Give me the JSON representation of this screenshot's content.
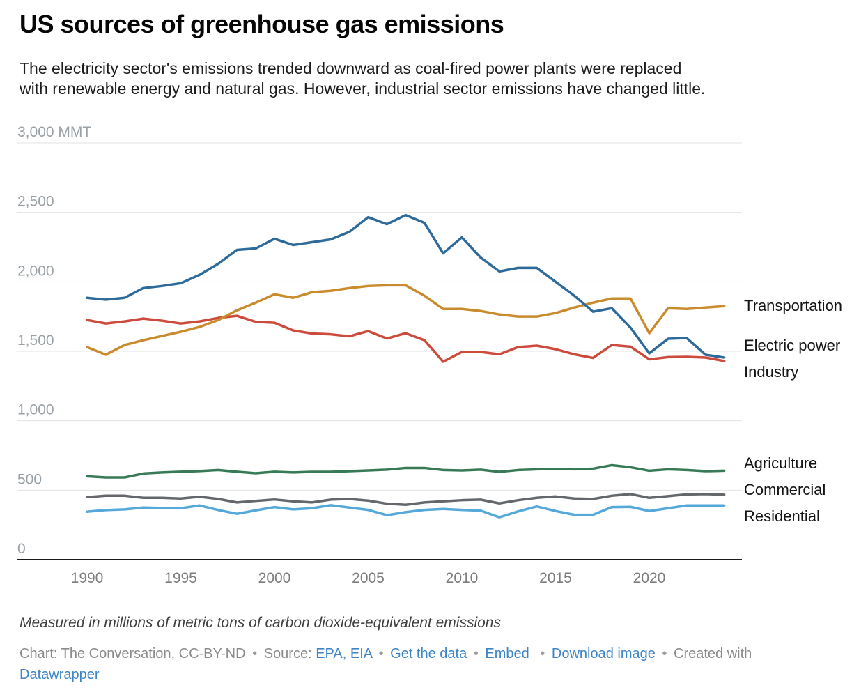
{
  "header": {
    "title": "US sources of greenhouse gas emissions",
    "subtitle_line1": "The electricity sector's emissions trended downward as coal-fired power plants were replaced",
    "subtitle_line2": "with renewable energy and natural gas. However, industrial sector emissions have changed little."
  },
  "chart_data": {
    "type": "line",
    "title": "US sources of greenhouse gas emissions",
    "xlabel": "",
    "ylabel": "MMT (millions of metric tons of CO2-equivalent)",
    "unit_suffix": "MMT",
    "ylim": [
      0,
      3000
    ],
    "grid": "horizontal",
    "legend_position": "right-edge-labels",
    "x": [
      1990,
      1991,
      1992,
      1993,
      1994,
      1995,
      1996,
      1997,
      1998,
      1999,
      2000,
      2001,
      2002,
      2003,
      2004,
      2005,
      2006,
      2007,
      2008,
      2009,
      2010,
      2011,
      2012,
      2013,
      2014,
      2015,
      2016,
      2017,
      2018,
      2019,
      2020,
      2021,
      2022,
      2023,
      2024
    ],
    "x_ticks": [
      1990,
      1995,
      2000,
      2005,
      2010,
      2015,
      2020
    ],
    "y_ticks": [
      0,
      500,
      1000,
      1500,
      2000,
      2500,
      3000
    ],
    "series": [
      {
        "name": "Transportation",
        "color": "#c98b2d",
        "values": [
          1530,
          1475,
          1545,
          1580,
          1610,
          1640,
          1675,
          1725,
          1795,
          1850,
          1910,
          1885,
          1925,
          1935,
          1955,
          1970,
          1975,
          1975,
          1900,
          1805,
          1805,
          1790,
          1765,
          1750,
          1750,
          1775,
          1815,
          1850,
          1880,
          1880,
          1630,
          1810,
          1805,
          1815,
          1825
        ]
      },
      {
        "name": "Electric power",
        "color": "#2e6b9b",
        "values": [
          1885,
          1872,
          1885,
          1955,
          1970,
          1990,
          2050,
          2130,
          2230,
          2240,
          2310,
          2265,
          2285,
          2305,
          2360,
          2465,
          2415,
          2480,
          2425,
          2205,
          2320,
          2175,
          2075,
          2100,
          2100,
          2000,
          1900,
          1785,
          1810,
          1670,
          1485,
          1590,
          1595,
          1475,
          1455
        ]
      },
      {
        "name": "Industry",
        "color": "#cc4b3c",
        "values": [
          1725,
          1700,
          1715,
          1735,
          1720,
          1700,
          1715,
          1740,
          1755,
          1712,
          1705,
          1650,
          1628,
          1622,
          1608,
          1645,
          1592,
          1630,
          1580,
          1425,
          1495,
          1495,
          1478,
          1530,
          1540,
          1515,
          1478,
          1452,
          1545,
          1533,
          1442,
          1458,
          1460,
          1455,
          1430
        ]
      },
      {
        "name": "Agriculture",
        "color": "#377a55",
        "values": [
          600,
          592,
          592,
          620,
          628,
          633,
          638,
          645,
          633,
          622,
          633,
          628,
          632,
          632,
          637,
          642,
          648,
          660,
          660,
          645,
          642,
          648,
          632,
          645,
          650,
          653,
          650,
          655,
          680,
          665,
          640,
          650,
          645,
          637,
          640
        ]
      },
      {
        "name": "Commercial",
        "color": "#64676b",
        "values": [
          450,
          460,
          460,
          445,
          445,
          440,
          453,
          437,
          412,
          423,
          433,
          420,
          412,
          432,
          437,
          425,
          403,
          395,
          412,
          420,
          428,
          432,
          405,
          428,
          445,
          455,
          440,
          437,
          460,
          472,
          445,
          457,
          470,
          472,
          468
        ]
      },
      {
        "name": "Residential",
        "color": "#54a8da",
        "values": [
          345,
          357,
          362,
          375,
          372,
          370,
          390,
          357,
          330,
          355,
          378,
          362,
          370,
          392,
          375,
          358,
          320,
          342,
          358,
          365,
          358,
          353,
          305,
          347,
          383,
          350,
          323,
          323,
          378,
          380,
          350,
          370,
          390,
          390,
          390
        ]
      }
    ]
  },
  "footer": {
    "note": "Measured in millions of metric tons of carbon dioxide-equivalent emissions",
    "chart_credit": "Chart: The Conversation, CC-BY-ND",
    "separator": "•",
    "source_label": "Source:",
    "source_links": "EPA, EIA",
    "link_get_data": "Get the data",
    "link_embed": "Embed",
    "link_download": "Download image",
    "created_with": "Created with",
    "datawrapper": "Datawrapper"
  }
}
